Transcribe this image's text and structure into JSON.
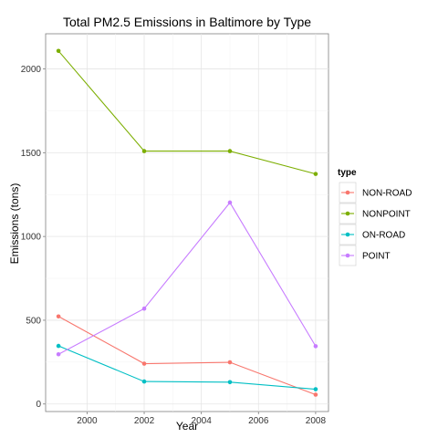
{
  "chart_data": {
    "type": "line",
    "title": "Total PM2.5 Emissions in Baltimore by Type",
    "xlabel": "Year",
    "ylabel": "Emissions (tons)",
    "x": [
      1999,
      2002,
      2005,
      2008
    ],
    "xlim": [
      1998.55,
      2008.45
    ],
    "ylim": [
      -45,
      2210
    ],
    "xticks": [
      2000,
      2002,
      2004,
      2006,
      2008
    ],
    "yticks": [
      0,
      500,
      1000,
      1500,
      2000
    ],
    "grid": true,
    "legend": {
      "title": "type",
      "position": "right"
    },
    "series": [
      {
        "name": "NON-ROAD",
        "color": "#F8766D",
        "values": [
          522.9,
          240.8,
          248.9,
          55.8
        ]
      },
      {
        "name": "NONPOINT",
        "color": "#7CAE00",
        "values": [
          2107.6,
          1509.5,
          1509.5,
          1373.2
        ]
      },
      {
        "name": "ON-ROAD",
        "color": "#00BFC4",
        "values": [
          346.8,
          134.3,
          130.4,
          88.3
        ]
      },
      {
        "name": "POINT",
        "color": "#C77CFF",
        "values": [
          296.8,
          569.3,
          1202.5,
          345.0
        ]
      }
    ]
  }
}
